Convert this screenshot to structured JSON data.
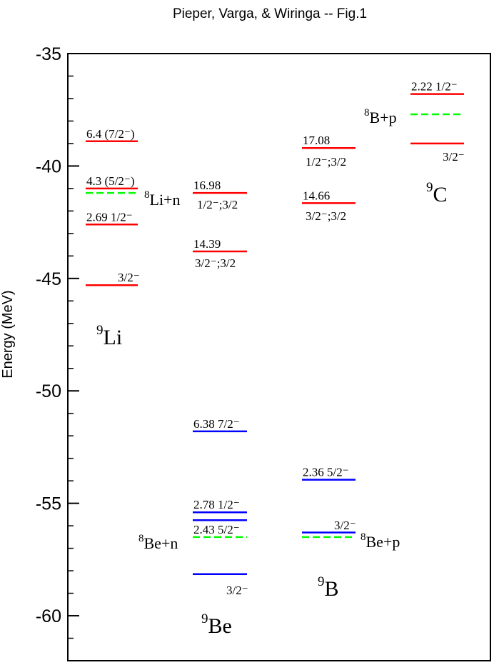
{
  "chart_data": {
    "type": "level-diagram",
    "title": "Pieper, Varga, & Wiringa -- Fig.1",
    "ylabel": "Energy (MeV)",
    "ylim": [
      -62,
      -35
    ],
    "yticks": [
      -35,
      -40,
      -45,
      -50,
      -55,
      -60
    ],
    "ytick_labels": [
      "-35",
      "-40",
      "-45",
      "-50",
      "-55",
      "-60"
    ],
    "columns": [
      "Li",
      "Be",
      "B",
      "C"
    ],
    "colors": {
      "red": "#ff0000",
      "blue": "#0000ff",
      "green": "#00ff00"
    },
    "levels": [
      {
        "col": 0,
        "energy": -38.9,
        "color": "red",
        "dashed": false,
        "label": "6.4 (7/2⁻)"
      },
      {
        "col": 0,
        "energy": -41.0,
        "color": "red",
        "dashed": false,
        "label": "4.3 (5/2⁻)"
      },
      {
        "col": 0,
        "energy": -41.2,
        "color": "green",
        "dashed": true,
        "label": ""
      },
      {
        "col": 0,
        "energy": -42.6,
        "color": "red",
        "dashed": false,
        "label": "2.69 1/2⁻"
      },
      {
        "col": 0,
        "energy": -45.3,
        "color": "red",
        "dashed": false,
        "label": ""
      },
      {
        "col": 1,
        "energy": -41.2,
        "color": "red",
        "dashed": false,
        "label": "16.98"
      },
      {
        "col": 1,
        "energy": -43.8,
        "color": "red",
        "dashed": false,
        "label": "14.39"
      },
      {
        "col": 1,
        "energy": -51.8,
        "color": "blue",
        "dashed": false,
        "label": "6.38 7/2⁻"
      },
      {
        "col": 1,
        "energy": -55.4,
        "color": "blue",
        "dashed": false,
        "label": "2.78 1/2⁻"
      },
      {
        "col": 1,
        "energy": -55.75,
        "color": "blue",
        "dashed": false,
        "label": ""
      },
      {
        "col": 1,
        "energy": -56.5,
        "color": "green",
        "dashed": true,
        "label": "2.43 5/2⁻"
      },
      {
        "col": 1,
        "energy": -58.15,
        "color": "blue",
        "dashed": false,
        "label": ""
      },
      {
        "col": 2,
        "energy": -39.2,
        "color": "red",
        "dashed": false,
        "label": "17.08"
      },
      {
        "col": 2,
        "energy": -41.65,
        "color": "red",
        "dashed": false,
        "label": "14.66"
      },
      {
        "col": 2,
        "energy": -53.95,
        "color": "blue",
        "dashed": false,
        "label": "2.36 5/2⁻"
      },
      {
        "col": 2,
        "energy": -56.3,
        "color": "blue",
        "dashed": false,
        "label": ""
      },
      {
        "col": 2,
        "energy": -56.5,
        "color": "green",
        "dashed": true,
        "label": ""
      },
      {
        "col": 3,
        "energy": -36.8,
        "color": "red",
        "dashed": false,
        "label": "2.22 1/2⁻"
      },
      {
        "col": 3,
        "energy": -37.7,
        "color": "green",
        "dashed": true,
        "label": ""
      },
      {
        "col": 3,
        "energy": -39.0,
        "color": "red",
        "dashed": false,
        "label": ""
      }
    ],
    "annotations": {
      "li_gs_spin": "3/2⁻",
      "be_1698_spin": "1/2⁻;3/2",
      "be_1439_spin": "3/2⁻;3/2",
      "be_gs_spin": "3/2⁻",
      "b_1708_spin": "1/2⁻;3/2",
      "b_1466_spin": "3/2⁻;3/2",
      "b_gs_spin": "3/2⁻",
      "c_gs_spin": "3/2⁻",
      "li8n_sup": "8",
      "li8n": "Li+n",
      "be8n_sup": "8",
      "be8n": "Be+n",
      "be8p_sup": "8",
      "be8p": "Be+p",
      "b8p_sup": "8",
      "b8p": "B+p",
      "nuc_li_sup": "9",
      "nuc_li": "Li",
      "nuc_be_sup": "9",
      "nuc_be": "Be",
      "nuc_b_sup": "9",
      "nuc_b": "B",
      "nuc_c_sup": "9",
      "nuc_c": "C"
    }
  }
}
